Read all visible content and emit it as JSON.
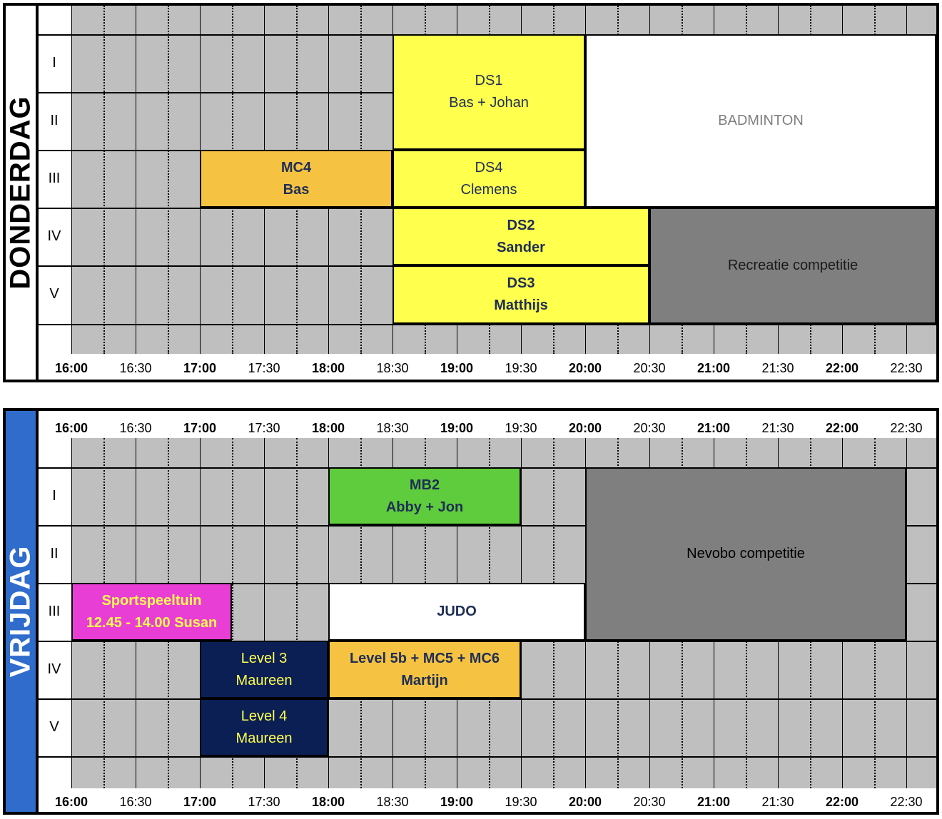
{
  "rows": [
    "I",
    "II",
    "III",
    "IV",
    "V"
  ],
  "times": [
    "16:00",
    "16:30",
    "17:00",
    "17:30",
    "18:00",
    "18:30",
    "19:00",
    "19:30",
    "20:00",
    "20:30",
    "21:00",
    "21:30",
    "22:00",
    "22:30"
  ],
  "colors": {
    "grid_bg": "#bfbfbf",
    "yellow": "#ffff4d",
    "orange": "#f5c242",
    "white": "#ffffff",
    "dark_gray": "#7f7f7f",
    "green": "#5fcc3d",
    "magenta": "#e93ed6",
    "navy": "#0b1f55",
    "blue_bar": "#2f6ccb",
    "text_navy": "#1f2e55"
  },
  "days": [
    {
      "name": "DONDERDAG",
      "blocks": [
        {
          "id": "ds1",
          "lines": [
            "DS1",
            "Bas + Johan"
          ],
          "start": "18:30",
          "end": "20:00",
          "row_from": "I",
          "row_to": "II",
          "color": "#ffff4d",
          "text_color": "#1f2e55",
          "bold": false
        },
        {
          "id": "badminton",
          "lines": [
            "BADMINTON"
          ],
          "start": "20:00",
          "end": "23:00",
          "row_from": "I",
          "row_to": "III",
          "color": "#ffffff",
          "text_color": "#7f7f7f",
          "bold": false
        },
        {
          "id": "mc4",
          "lines": [
            "MC4",
            "Bas"
          ],
          "start": "17:00",
          "end": "18:30",
          "row_from": "III",
          "row_to": "III",
          "color": "#f5c242",
          "text_color": "#1f2e55",
          "bold": true
        },
        {
          "id": "ds4",
          "lines": [
            "DS4",
            "Clemens"
          ],
          "start": "18:30",
          "end": "20:00",
          "row_from": "III",
          "row_to": "III",
          "color": "#ffff4d",
          "text_color": "#1f2e55",
          "bold": false
        },
        {
          "id": "ds2",
          "lines": [
            "DS2",
            "Sander"
          ],
          "start": "18:30",
          "end": "20:30",
          "row_from": "IV",
          "row_to": "IV",
          "color": "#ffff4d",
          "text_color": "#1f2e55",
          "bold": true
        },
        {
          "id": "ds3",
          "lines": [
            "DS3",
            "Matthijs"
          ],
          "start": "18:30",
          "end": "20:30",
          "row_from": "V",
          "row_to": "V",
          "color": "#ffff4d",
          "text_color": "#1f2e55",
          "bold": true
        },
        {
          "id": "recreatie",
          "lines": [
            "Recreatie competitie"
          ],
          "start": "20:30",
          "end": "23:00",
          "row_from": "IV",
          "row_to": "V",
          "color": "#7f7f7f",
          "text_color": "#1a1a1a",
          "bold": false
        }
      ]
    },
    {
      "name": "VRIJDAG",
      "blocks": [
        {
          "id": "mb2",
          "lines": [
            "MB2",
            "Abby + Jon"
          ],
          "start": "18:00",
          "end": "19:30",
          "row_from": "I",
          "row_to": "I",
          "color": "#5fcc3d",
          "text_color": "#1f2e55",
          "bold": true
        },
        {
          "id": "nevobo",
          "lines": [
            "Nevobo competitie"
          ],
          "start": "20:00",
          "end": "22:30",
          "row_from": "I",
          "row_to": "III",
          "color": "#7f7f7f",
          "text_color": "#000000",
          "bold": false
        },
        {
          "id": "sportspeeltuin",
          "lines": [
            "Sportspeeltuin",
            "12.45 - 14.00 Susan"
          ],
          "start": "16:00",
          "end": "17:15",
          "row_from": "III",
          "row_to": "III",
          "color": "#e93ed6",
          "text_color": "#ffff4d",
          "bold": true
        },
        {
          "id": "judo",
          "lines": [
            "JUDO"
          ],
          "start": "18:00",
          "end": "20:00",
          "row_from": "III",
          "row_to": "III",
          "color": "#ffffff",
          "text_color": "#1f2e55",
          "bold": true
        },
        {
          "id": "level3",
          "lines": [
            "Level 3",
            "Maureen"
          ],
          "start": "17:00",
          "end": "18:00",
          "row_from": "IV",
          "row_to": "IV",
          "color": "#0b1f55",
          "text_color": "#ffff4d",
          "bold": false
        },
        {
          "id": "level5b",
          "lines": [
            "Level 5b + MC5 + MC6",
            "Martijn"
          ],
          "start": "18:00",
          "end": "19:30",
          "row_from": "IV",
          "row_to": "IV",
          "color": "#f5c242",
          "text_color": "#1f2e55",
          "bold": true
        },
        {
          "id": "level4",
          "lines": [
            "Level 4",
            "Maureen"
          ],
          "start": "17:00",
          "end": "18:00",
          "row_from": "V",
          "row_to": "V",
          "color": "#0b1f55",
          "text_color": "#ffff4d",
          "bold": false
        }
      ]
    }
  ]
}
